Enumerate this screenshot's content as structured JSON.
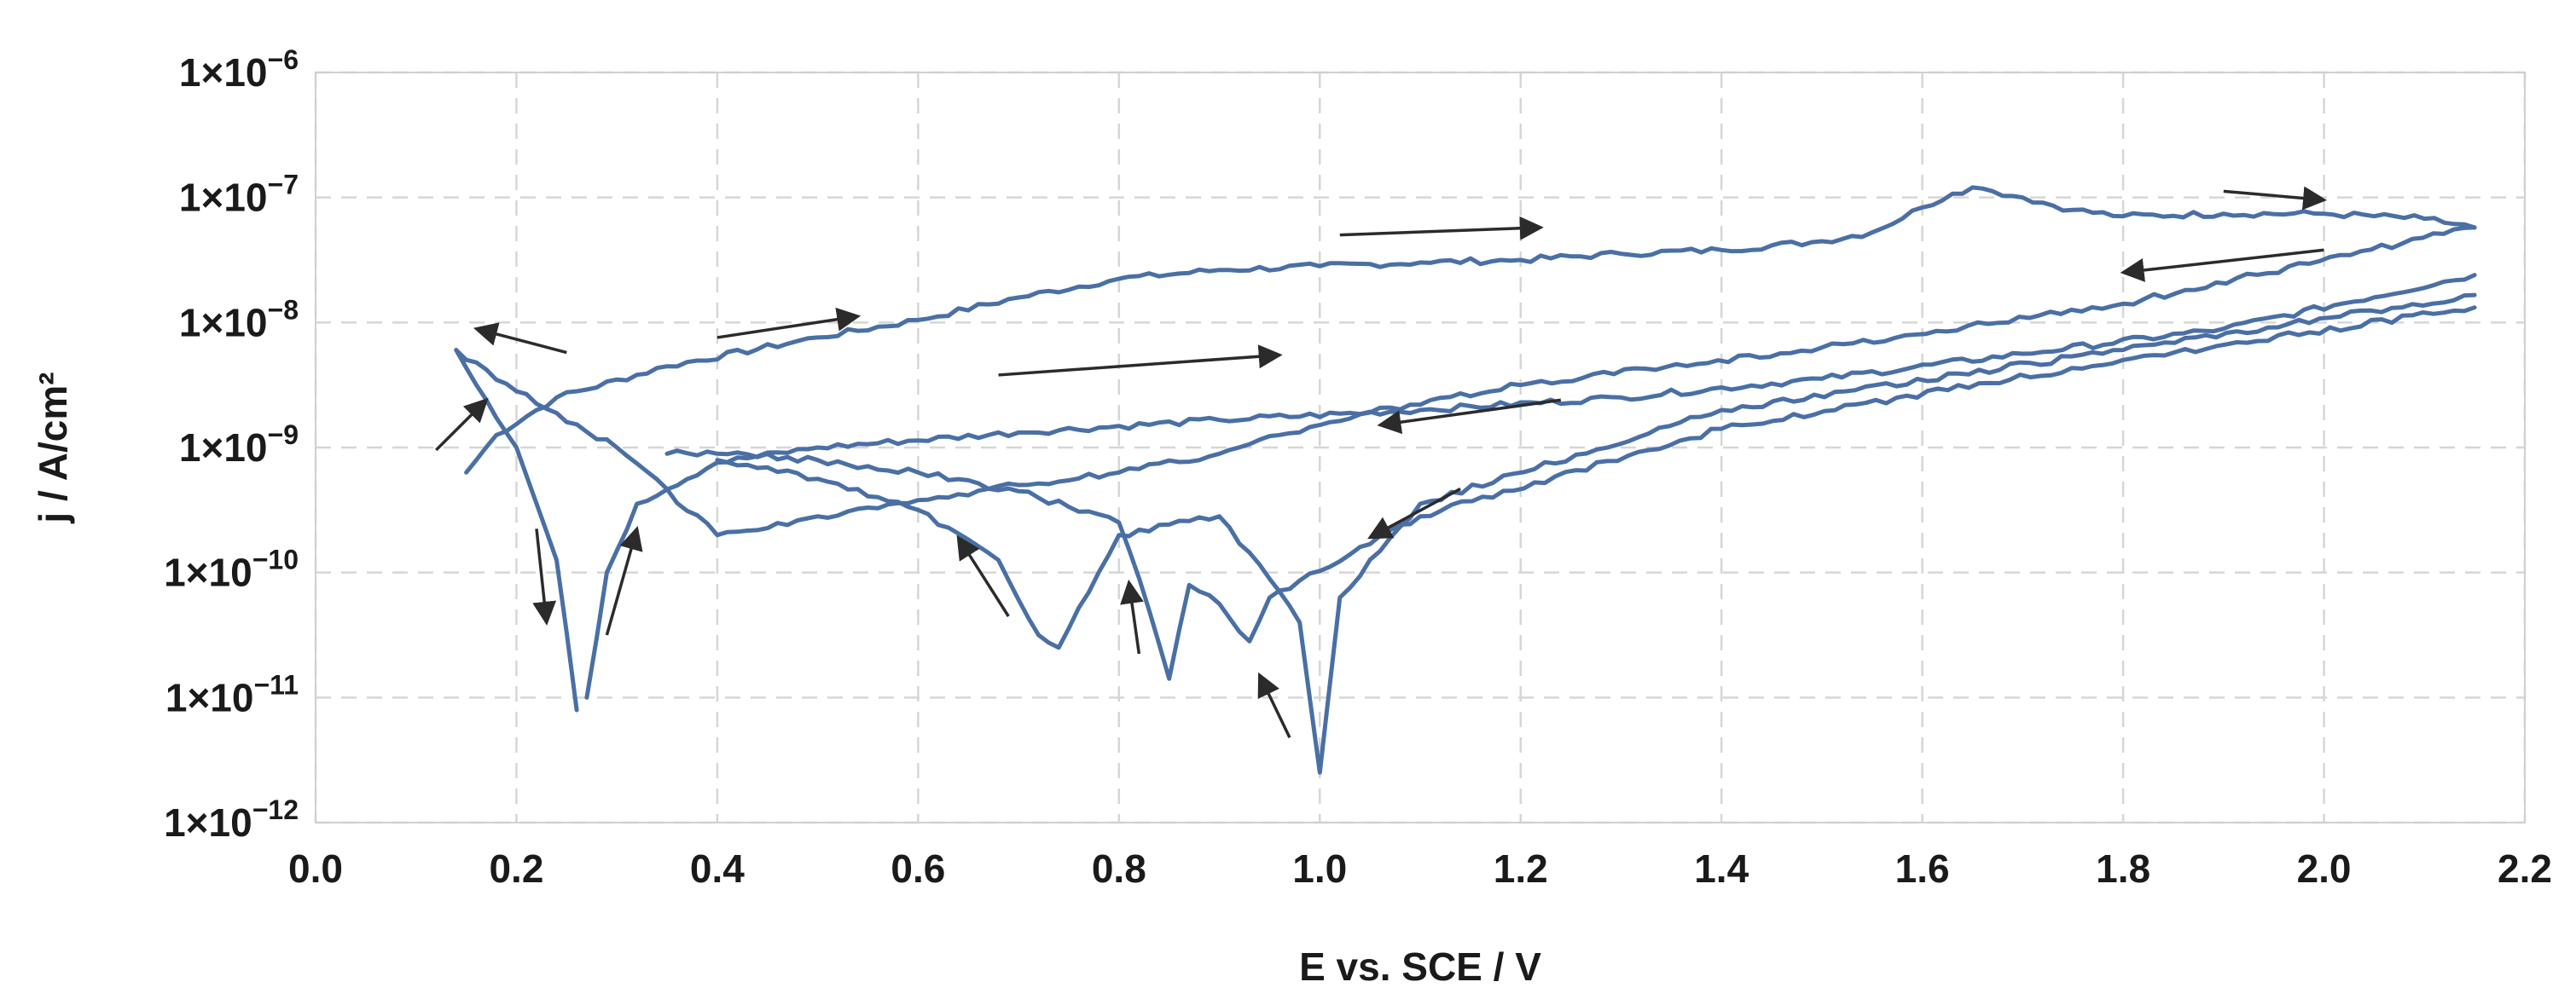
{
  "chart_data": {
    "type": "line",
    "title": "",
    "xlabel": "E vs. SCE / V",
    "ylabel": "j / A/cm²",
    "xlim": [
      0.0,
      2.2
    ],
    "ylim_log10": [
      -12,
      -6
    ],
    "y_scale": "log",
    "grid": true,
    "legend": "none",
    "x_ticks": [
      {
        "value": 0.0,
        "label": "0.0"
      },
      {
        "value": 0.2,
        "label": "0.2"
      },
      {
        "value": 0.4,
        "label": "0.4"
      },
      {
        "value": 0.6,
        "label": "0.6"
      },
      {
        "value": 0.8,
        "label": "0.8"
      },
      {
        "value": 1.0,
        "label": "1.0"
      },
      {
        "value": 1.2,
        "label": "1.2"
      },
      {
        "value": 1.4,
        "label": "1.4"
      },
      {
        "value": 1.6,
        "label": "1.6"
      },
      {
        "value": 1.8,
        "label": "1.8"
      },
      {
        "value": 2.0,
        "label": "2.0"
      },
      {
        "value": 2.2,
        "label": "2.2"
      }
    ],
    "y_ticks": [
      {
        "exp": -6,
        "mantissa": "1×10",
        "sup": "−6"
      },
      {
        "exp": -7,
        "mantissa": "1×10",
        "sup": "−7"
      },
      {
        "exp": -8,
        "mantissa": "1×10",
        "sup": "−8"
      },
      {
        "exp": -9,
        "mantissa": "1×10",
        "sup": "−9"
      },
      {
        "exp": -10,
        "mantissa": "1×10",
        "sup": "−10"
      },
      {
        "exp": -11,
        "mantissa": "1×10",
        "sup": "−11"
      },
      {
        "exp": -12,
        "mantissa": "1×10",
        "sup": "−12"
      }
    ],
    "series_color": "#4a6fa5",
    "arrow_color": "#2b2b2b",
    "series": [
      {
        "name": "first-cycle",
        "x": [
          0.15,
          0.18,
          0.24,
          0.35,
          0.5,
          0.6,
          0.7,
          0.8,
          0.9,
          1.0,
          1.1,
          1.2,
          1.3,
          1.4,
          1.5,
          1.55,
          1.6,
          1.63,
          1.65,
          1.67,
          1.7,
          1.75,
          1.8,
          1.9,
          2.0,
          2.1,
          2.15
        ],
        "log10y": [
          -9.2,
          -8.9,
          -8.6,
          -8.35,
          -8.12,
          -7.98,
          -7.8,
          -7.65,
          -7.58,
          -7.55,
          -7.52,
          -7.5,
          -7.45,
          -7.42,
          -7.35,
          -7.28,
          -7.08,
          -6.97,
          -6.92,
          -6.95,
          -7.0,
          -7.1,
          -7.15,
          -7.13,
          -7.13,
          -7.17,
          -7.24
        ]
      },
      {
        "name": "return-scan-1",
        "x": [
          2.15,
          1.8,
          1.5,
          1.2,
          1.05,
          1.0,
          0.96,
          0.9,
          0.8,
          0.7,
          0.6,
          0.5,
          0.4,
          0.3,
          0.2,
          0.14
        ],
        "log10y": [
          -7.24,
          -7.85,
          -8.2,
          -8.5,
          -8.72,
          -8.82,
          -8.9,
          -9.05,
          -9.2,
          -9.3,
          -9.42,
          -9.55,
          -9.7,
          -9.0,
          -8.55,
          -8.22
        ]
      },
      {
        "name": "cathodic-branch-1",
        "x": [
          0.14,
          0.2,
          0.24,
          0.26
        ],
        "log10y": [
          -8.22,
          -9.0,
          -9.9,
          -11.1
        ]
      },
      {
        "name": "anodic-sweep-2",
        "x": [
          0.27,
          0.29,
          0.32,
          0.4,
          0.5,
          0.7,
          0.9,
          1.1,
          1.3,
          1.5,
          1.7,
          1.9,
          2.15
        ],
        "log10y": [
          -11.0,
          -10.0,
          -9.45,
          -9.12,
          -9.0,
          -8.88,
          -8.78,
          -8.7,
          -8.6,
          -8.45,
          -8.25,
          -8.05,
          -7.62
        ]
      },
      {
        "name": "return-scan-2",
        "x": [
          2.15,
          1.8,
          1.4,
          1.1,
          1.02,
          1.0,
          0.98,
          0.95,
          0.9,
          0.8,
          0.74,
          0.72,
          0.68,
          0.6,
          0.5,
          0.4
        ],
        "log10y": [
          -7.78,
          -8.22,
          -8.7,
          -9.45,
          -10.2,
          -11.6,
          -10.4,
          -10.05,
          -9.55,
          -9.7,
          -10.6,
          -10.5,
          -9.9,
          -9.5,
          -9.25,
          -9.1
        ]
      },
      {
        "name": "return-scan-3",
        "x": [
          2.15,
          1.8,
          1.4,
          1.1,
          0.95,
          0.93,
          0.9,
          0.87,
          0.85,
          0.83,
          0.8,
          0.7,
          0.6,
          0.5,
          0.4,
          0.35
        ],
        "log10y": [
          -7.88,
          -8.3,
          -8.85,
          -9.55,
          -10.2,
          -10.55,
          -10.25,
          -10.1,
          -10.85,
          -10.3,
          -9.6,
          -9.35,
          -9.2,
          -9.1,
          -9.05,
          -9.05
        ]
      }
    ],
    "arrows": [
      {
        "x1": 0.12,
        "y1": -9.02,
        "x2": 0.17,
        "y2": -8.62
      },
      {
        "x1": 0.25,
        "y1": -8.24,
        "x2": 0.16,
        "y2": -8.05
      },
      {
        "x1": 0.22,
        "y1": -9.65,
        "x2": 0.23,
        "y2": -10.4
      },
      {
        "x1": 0.29,
        "y1": -10.5,
        "x2": 0.32,
        "y2": -9.65
      },
      {
        "x1": 0.4,
        "y1": -8.12,
        "x2": 0.54,
        "y2": -7.95
      },
      {
        "x1": 0.68,
        "y1": -8.42,
        "x2": 0.96,
        "y2": -8.26
      },
      {
        "x1": 1.02,
        "y1": -7.3,
        "x2": 1.22,
        "y2": -7.24
      },
      {
        "x1": 1.9,
        "y1": -6.95,
        "x2": 2.0,
        "y2": -7.02
      },
      {
        "x1": 2.0,
        "y1": -7.42,
        "x2": 1.8,
        "y2": -7.6
      },
      {
        "x1": 1.24,
        "y1": -8.62,
        "x2": 1.06,
        "y2": -8.82
      },
      {
        "x1": 1.14,
        "y1": -9.33,
        "x2": 1.05,
        "y2": -9.72
      },
      {
        "x1": 0.69,
        "y1": -10.35,
        "x2": 0.64,
        "y2": -9.72
      },
      {
        "x1": 0.82,
        "y1": -10.65,
        "x2": 0.81,
        "y2": -10.08
      },
      {
        "x1": 0.97,
        "y1": -11.32,
        "x2": 0.94,
        "y2": -10.82
      }
    ]
  }
}
